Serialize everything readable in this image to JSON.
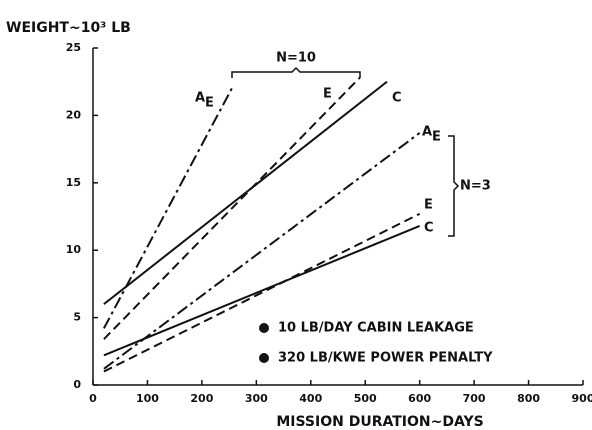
{
  "chart_data": {
    "type": "line",
    "ylabel": "WEIGHT~10³ LB",
    "xlabel": "MISSION DURATION~DAYS",
    "xlim": [
      0,
      900
    ],
    "xticks": [
      0,
      100,
      200,
      300,
      400,
      500,
      600,
      700,
      800,
      900
    ],
    "ylim": [
      0,
      25
    ],
    "yticks": [
      0,
      5,
      10,
      15,
      20,
      25
    ],
    "grid": false,
    "series": [
      {
        "label": "A",
        "label_sub": "E",
        "style": "dashdot",
        "color": "#111111",
        "x": [
          20,
          255
        ],
        "values": [
          4.2,
          22
        ]
      },
      {
        "label": "E",
        "style": "dashed",
        "color": "#111111",
        "x": [
          20,
          490
        ],
        "values": [
          3.4,
          22.8
        ]
      },
      {
        "label": "C",
        "style": "solid",
        "color": "#111111",
        "x": [
          20,
          540
        ],
        "values": [
          6,
          22.5
        ]
      },
      {
        "label": "A",
        "label_sub": "E",
        "style": "dashdot",
        "color": "#111111",
        "x": [
          20,
          600
        ],
        "values": [
          1.2,
          18.7
        ]
      },
      {
        "label": "E",
        "style": "dashed",
        "color": "#111111",
        "x": [
          20,
          600
        ],
        "values": [
          1,
          12.7
        ]
      },
      {
        "label": "C",
        "style": "solid",
        "color": "#111111",
        "x": [
          20,
          600
        ],
        "values": [
          2.2,
          11.8
        ]
      }
    ],
    "groups": [
      "N=10",
      "N=3"
    ],
    "notes": [
      "10 LB/DAY CABIN LEAKAGE",
      "320 LB/KWE POWER PENALTY"
    ]
  }
}
